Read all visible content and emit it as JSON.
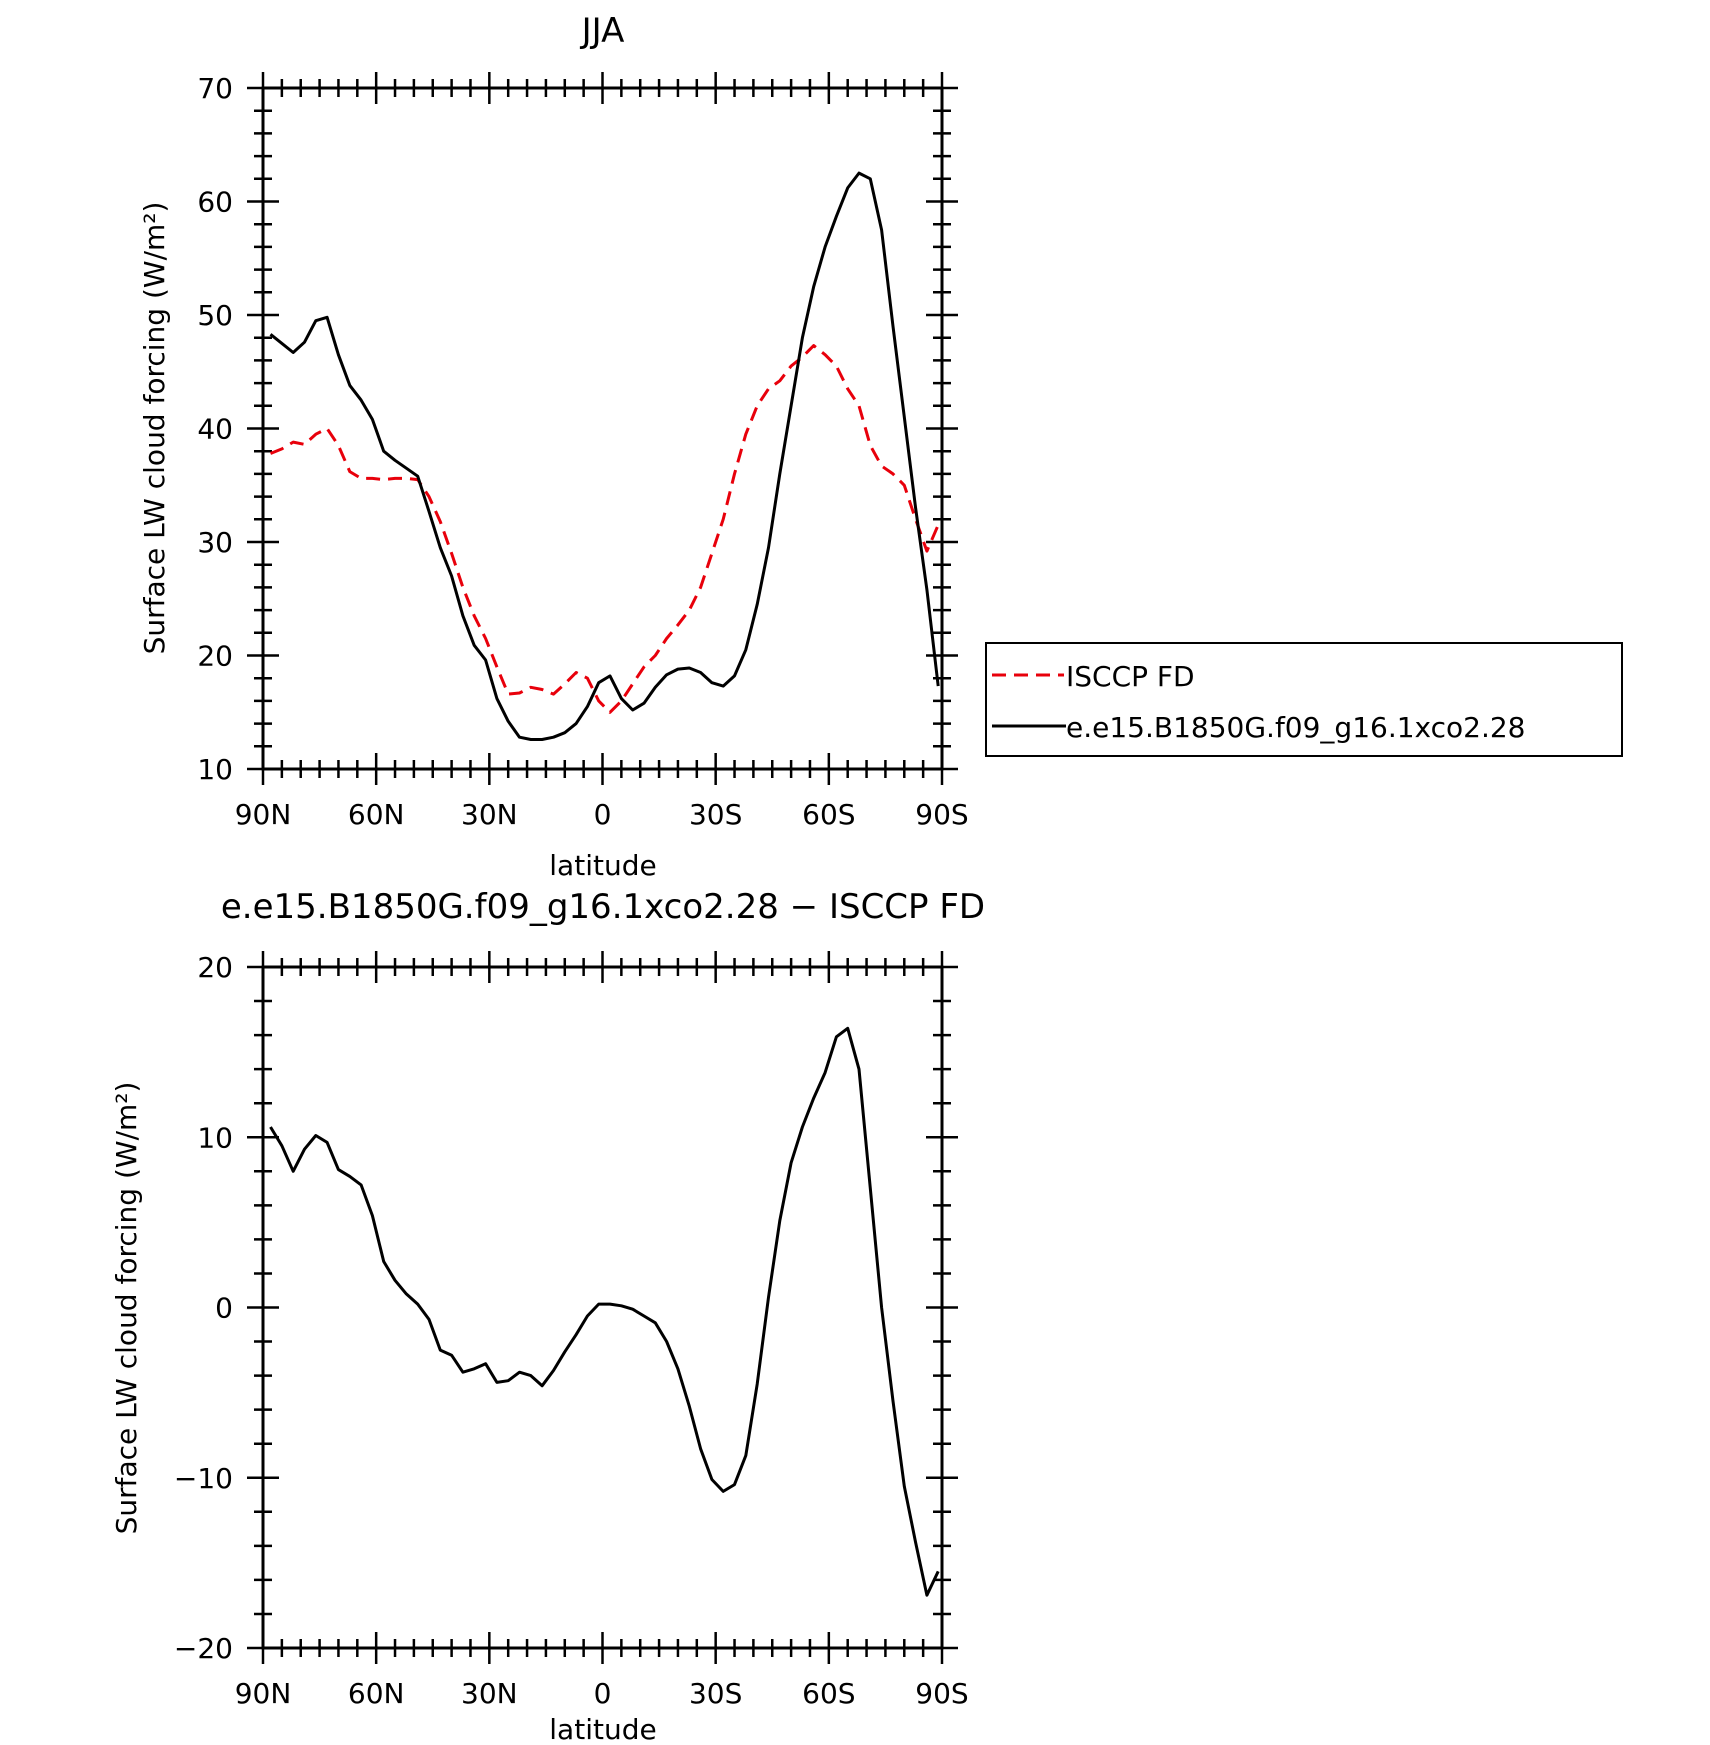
{
  "chart_data": [
    {
      "type": "line",
      "title": "JJA",
      "xlabel": "latitude",
      "ylabel": "Surface LW cloud forcing (W/m²)",
      "ylim": [
        10,
        70
      ],
      "xlim": [
        -90,
        90
      ],
      "yticks": [
        10,
        20,
        30,
        40,
        50,
        60,
        70
      ],
      "xticks": [
        -90,
        -60,
        -30,
        0,
        30,
        60,
        90
      ],
      "xtick_labels": [
        "90N",
        "60N",
        "30N",
        "0",
        "30S",
        "60S",
        "90S"
      ],
      "grid": false,
      "legend_position": "right",
      "series": [
        {
          "name": "ISCCP FD",
          "color": "#e8000b",
          "style": "dashed",
          "x": [
            -88,
            -85,
            -82,
            -79,
            -76,
            -73,
            -70,
            -67,
            -64,
            -61,
            -58,
            -55,
            -52,
            -49,
            -46,
            -43,
            -40,
            -37,
            -34,
            -31,
            -28,
            -25,
            -22,
            -19,
            -16,
            -13,
            -10,
            -7,
            -4,
            -1,
            2,
            5,
            8,
            11,
            14,
            17,
            20,
            23,
            26,
            29,
            32,
            35,
            38,
            41,
            44,
            47,
            50,
            53,
            56,
            59,
            62,
            65,
            68,
            71,
            74,
            77,
            80,
            83,
            86,
            89
          ],
          "y": [
            37.8,
            38.2,
            38.8,
            38.6,
            39.5,
            40.0,
            38.5,
            36.2,
            35.6,
            35.6,
            35.5,
            35.6,
            35.6,
            35.5,
            34.0,
            31.8,
            29.0,
            26.0,
            23.5,
            21.5,
            19.0,
            16.6,
            16.7,
            17.2,
            17.0,
            16.6,
            17.5,
            18.5,
            18.0,
            16.0,
            15.0,
            16.0,
            17.5,
            19.0,
            20.0,
            21.5,
            22.7,
            24.0,
            26.0,
            29.0,
            32.0,
            36.0,
            39.5,
            42.0,
            43.5,
            44.2,
            45.5,
            46.3,
            47.3,
            46.5,
            45.5,
            43.5,
            42.0,
            38.5,
            36.7,
            36.0,
            35.0,
            32.0,
            29.2,
            31.5
          ]
        },
        {
          "name": "e.e15.B1850G.f09_g16.1xco2.28",
          "color": "#000000",
          "style": "solid",
          "x": [
            -88,
            -85,
            -82,
            -79,
            -76,
            -73,
            -70,
            -67,
            -64,
            -61,
            -58,
            -55,
            -52,
            -49,
            -46,
            -43,
            -40,
            -37,
            -34,
            -31,
            -28,
            -25,
            -22,
            -19,
            -16,
            -13,
            -10,
            -7,
            -4,
            -1,
            2,
            5,
            8,
            11,
            14,
            17,
            20,
            23,
            26,
            29,
            32,
            35,
            38,
            41,
            44,
            47,
            50,
            53,
            56,
            59,
            62,
            65,
            68,
            71,
            74,
            77,
            80,
            83,
            86,
            89
          ],
          "y": [
            48.3,
            47.5,
            46.7,
            47.6,
            49.5,
            49.8,
            46.5,
            43.8,
            42.5,
            40.8,
            38.0,
            37.2,
            36.5,
            35.8,
            32.7,
            29.5,
            27.0,
            23.5,
            20.9,
            19.6,
            16.2,
            14.2,
            12.8,
            12.6,
            12.6,
            12.8,
            13.2,
            14.0,
            15.5,
            17.6,
            18.2,
            16.2,
            15.2,
            15.8,
            17.2,
            18.3,
            18.8,
            18.9,
            18.5,
            17.6,
            17.3,
            18.2,
            20.5,
            24.5,
            29.5,
            36.0,
            42.0,
            48.0,
            52.5,
            56.0,
            58.7,
            61.2,
            62.5,
            62.0,
            57.5,
            49.0,
            41.0,
            33.0,
            25.8,
            17.3
          ]
        }
      ]
    },
    {
      "type": "line",
      "title": "e.e15.B1850G.f09_g16.1xco2.28 − ISCCP FD",
      "xlabel": "latitude",
      "ylabel": "Surface LW cloud forcing (W/m²)",
      "ylim": [
        -20,
        20
      ],
      "xlim": [
        -90,
        90
      ],
      "yticks": [
        -20,
        -10,
        0,
        10,
        20
      ],
      "xticks": [
        -90,
        -60,
        -30,
        0,
        30,
        60,
        90
      ],
      "xtick_labels": [
        "90N",
        "60N",
        "30N",
        "0",
        "30S",
        "60S",
        "90S"
      ],
      "grid": false,
      "series": [
        {
          "color": "#000000",
          "style": "solid",
          "x": [
            -88,
            -85,
            -82,
            -79,
            -76,
            -73,
            -70,
            -67,
            -64,
            -61,
            -58,
            -55,
            -52,
            -49,
            -46,
            -43,
            -40,
            -37,
            -34,
            -31,
            -28,
            -25,
            -22,
            -19,
            -16,
            -13,
            -10,
            -7,
            -4,
            -1,
            2,
            5,
            8,
            11,
            14,
            17,
            20,
            23,
            26,
            29,
            32,
            35,
            38,
            41,
            44,
            47,
            50,
            53,
            56,
            59,
            62,
            65,
            68,
            71,
            74,
            77,
            80,
            83,
            86,
            89
          ],
          "y": [
            10.6,
            9.5,
            8.0,
            9.3,
            10.1,
            9.7,
            8.1,
            7.7,
            7.2,
            5.4,
            2.7,
            1.6,
            0.8,
            0.2,
            -0.7,
            -2.5,
            -2.8,
            -3.8,
            -3.6,
            -3.3,
            -4.4,
            -4.3,
            -3.8,
            -4.0,
            -4.6,
            -3.7,
            -2.6,
            -1.6,
            -0.5,
            0.2,
            0.2,
            0.1,
            -0.1,
            -0.5,
            -0.9,
            -2.0,
            -3.6,
            -5.8,
            -8.3,
            -10.1,
            -10.8,
            -10.4,
            -8.7,
            -4.5,
            0.6,
            5.1,
            8.5,
            10.6,
            12.3,
            13.8,
            15.9,
            16.4,
            14.0,
            7.0,
            0.0,
            -5.5,
            -10.5,
            -13.8,
            -16.9,
            -15.5
          ]
        }
      ]
    }
  ]
}
